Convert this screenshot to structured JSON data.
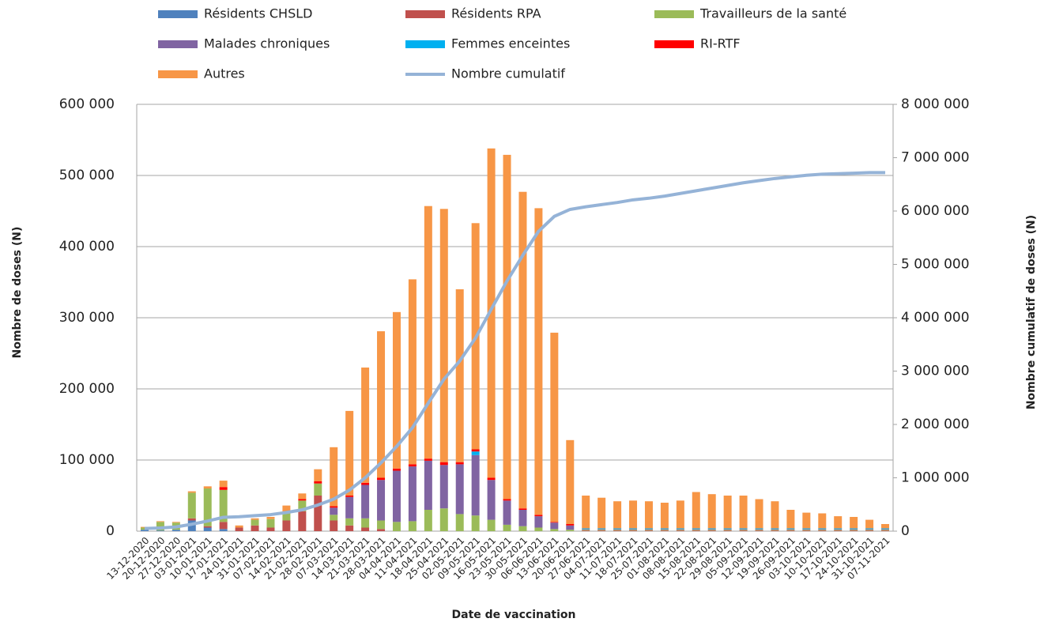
{
  "chart_data": {
    "type": "bar",
    "x_label": "Date de vaccination",
    "y_label": "Nombre de doses (N)",
    "y2_label": "Nombre cumulatif de doses (N)",
    "stacked": true,
    "grid": true,
    "legend": "top",
    "categories": [
      "13-12-2020",
      "20-12-2020",
      "27-12-2020",
      "03-01-2021",
      "10-01-2021",
      "17-01-2021",
      "24-01-2021",
      "31-01-2021",
      "07-02-2021",
      "14-02-2021",
      "21-02-2021",
      "28-02-2021",
      "07-03-2021",
      "14-03-2021",
      "21-03-2021",
      "28-03-2021",
      "04-04-2021",
      "11-04-2021",
      "18-04-2021",
      "25-04-2021",
      "02-05-2021",
      "09-05-2021",
      "16-05-2021",
      "23-05-2021",
      "30-05-2021",
      "06-06-2021",
      "13-06-2021",
      "20-06-2021",
      "27-06-2021",
      "04-07-2021",
      "11-07-2021",
      "18-07-2021",
      "25-07-2021",
      "01-08-2021",
      "08-08-2021",
      "15-08-2021",
      "22-08-2021",
      "29-08-2021",
      "05-09-2021",
      "12-09-2021",
      "19-09-2021",
      "26-09-2021",
      "03-10-2021",
      "10-10-2021",
      "17-10-2021",
      "24-10-2021",
      "31-10-2021",
      "07-11-2021"
    ],
    "ylim": [
      0,
      600000
    ],
    "yticks": [
      {
        "value": 0,
        "label": "0"
      },
      {
        "value": 100000,
        "label": "100 000"
      },
      {
        "value": 200000,
        "label": "200 000"
      },
      {
        "value": 300000,
        "label": "300 000"
      },
      {
        "value": 400000,
        "label": "400 000"
      },
      {
        "value": 500000,
        "label": "500 000"
      },
      {
        "value": 600000,
        "label": "600 000"
      }
    ],
    "y2lim": [
      0,
      8000000
    ],
    "y2ticks": [
      {
        "value": 0,
        "label": "0"
      },
      {
        "value": 1000000,
        "label": "1 000 000"
      },
      {
        "value": 2000000,
        "label": "2 000 000"
      },
      {
        "value": 3000000,
        "label": "3 000 000"
      },
      {
        "value": 4000000,
        "label": "4 000 000"
      },
      {
        "value": 5000000,
        "label": "5 000 000"
      },
      {
        "value": 6000000,
        "label": "6 000 000"
      },
      {
        "value": 7000000,
        "label": "7 000 000"
      },
      {
        "value": 8000000,
        "label": "8 000 000"
      }
    ],
    "series": [
      {
        "name": "Résidents CHSLD",
        "color": "#4f81bd",
        "values": [
          2000,
          1000,
          2000,
          15000,
          5000,
          3000,
          0,
          0,
          0,
          0,
          0,
          0,
          0,
          0,
          0,
          0,
          0,
          0,
          0,
          0,
          0,
          0,
          0,
          0,
          0,
          0,
          0,
          0,
          0,
          0,
          0,
          0,
          0,
          0,
          0,
          0,
          0,
          0,
          0,
          0,
          0,
          0,
          0,
          0,
          0,
          0,
          0,
          0
        ]
      },
      {
        "name": "Résidents RPA",
        "color": "#c0504d",
        "values": [
          0,
          0,
          0,
          3000,
          2000,
          10000,
          5000,
          8000,
          5000,
          15000,
          28000,
          50000,
          15000,
          8000,
          5000,
          3000,
          0,
          0,
          0,
          0,
          0,
          0,
          0,
          0,
          0,
          0,
          0,
          0,
          1000,
          1000,
          1000,
          1000,
          1000,
          1000,
          1000,
          1000,
          1000,
          1000,
          1000,
          1000,
          1000,
          1000,
          1000,
          1000,
          1000,
          1000,
          1000,
          1000
        ]
      },
      {
        "name": "Travailleurs de la santé",
        "color": "#9bbb59",
        "values": [
          3000,
          12000,
          10000,
          36000,
          53000,
          45000,
          0,
          8000,
          12000,
          12000,
          15000,
          17000,
          8000,
          10000,
          13000,
          12000,
          13000,
          14000,
          30000,
          32000,
          24000,
          22000,
          16000,
          9000,
          7000,
          5000,
          3000,
          2000,
          1000,
          1000,
          1000,
          1000,
          1000,
          1000,
          1000,
          1000,
          1000,
          1000,
          1000,
          1000,
          1000,
          1000,
          1000,
          1000,
          1000,
          1000,
          1000,
          1000
        ]
      },
      {
        "name": "Malades chroniques",
        "color": "#8064a2",
        "values": [
          0,
          0,
          0,
          0,
          0,
          0,
          0,
          0,
          0,
          0,
          0,
          0,
          10000,
          30000,
          47000,
          57000,
          72000,
          77000,
          69000,
          61000,
          70000,
          85000,
          56000,
          34000,
          23000,
          16000,
          9000,
          6000,
          1000,
          1000,
          1000,
          1000,
          1000,
          1000,
          1000,
          1000,
          1000,
          1000,
          1000,
          1000,
          1000,
          1000,
          1000,
          1000,
          1000,
          1000,
          1000,
          1000
        ]
      },
      {
        "name": "Femmes enceintes",
        "color": "#00b0f0",
        "values": [
          0,
          0,
          0,
          0,
          0,
          0,
          0,
          0,
          0,
          0,
          0,
          0,
          0,
          0,
          0,
          0,
          0,
          0,
          0,
          0,
          0,
          5000,
          0,
          0,
          0,
          0,
          0,
          0,
          1000,
          1000,
          1000,
          1000,
          1000,
          1000,
          1000,
          1000,
          1000,
          1000,
          1000,
          1000,
          1000,
          1000,
          1000,
          1000,
          1000,
          1000,
          1000,
          1000
        ]
      },
      {
        "name": "RI-RTF",
        "color": "#ff0000",
        "values": [
          0,
          0,
          0,
          0,
          0,
          4000,
          0,
          0,
          0,
          0,
          2000,
          3000,
          2000,
          2000,
          3000,
          3000,
          3000,
          3000,
          3000,
          4000,
          3000,
          3000,
          3000,
          2000,
          2000,
          2000,
          1000,
          2000,
          0,
          0,
          0,
          0,
          0,
          0,
          0,
          0,
          0,
          0,
          0,
          0,
          0,
          0,
          0,
          0,
          0,
          0,
          0,
          0
        ]
      },
      {
        "name": "Autres",
        "color": "#f79646",
        "values": [
          1000,
          1000,
          1000,
          2000,
          3000,
          9000,
          3000,
          2000,
          3000,
          9000,
          8000,
          17000,
          83000,
          119000,
          162000,
          206000,
          220000,
          260000,
          355000,
          356000,
          243000,
          318000,
          463000,
          484000,
          445000,
          431000,
          266000,
          118000,
          46000,
          43000,
          38000,
          39000,
          38000,
          36000,
          39000,
          51000,
          48000,
          46000,
          46000,
          41000,
          38000,
          26000,
          22000,
          21000,
          17000,
          16000,
          12000,
          6000
        ]
      },
      {
        "name": "Nombre cumulatif",
        "color": "#95b3d7",
        "type": "line",
        "axis": "y2",
        "values": [
          50000,
          60000,
          80000,
          130000,
          190000,
          260000,
          270000,
          290000,
          310000,
          350000,
          400000,
          490000,
          600000,
          770000,
          1000000,
          1280000,
          1590000,
          1940000,
          2400000,
          2850000,
          3190000,
          3620000,
          4160000,
          4690000,
          5170000,
          5620000,
          5900000,
          6030000,
          6080000,
          6120000,
          6160000,
          6210000,
          6240000,
          6280000,
          6330000,
          6380000,
          6430000,
          6480000,
          6530000,
          6570000,
          6610000,
          6640000,
          6670000,
          6690000,
          6700000,
          6710000,
          6720000,
          6720000
        ]
      }
    ]
  }
}
